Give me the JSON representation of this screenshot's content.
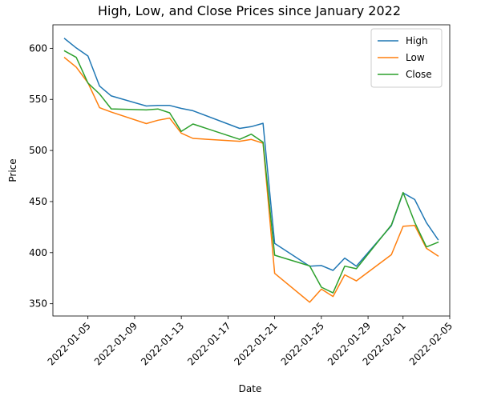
{
  "chart_data": {
    "type": "line",
    "title": "High, Low, and Close Prices since January 2022",
    "xlabel": "Date",
    "ylabel": "Price",
    "x_type": "date",
    "xlim": [
      "2022-01-02",
      "2022-02-05"
    ],
    "ylim": [
      338,
      623
    ],
    "xticks": [
      "2022-01-05",
      "2022-01-09",
      "2022-01-13",
      "2022-01-17",
      "2022-01-21",
      "2022-01-25",
      "2022-01-29",
      "2022-02-01",
      "2022-02-05"
    ],
    "yticks": [
      350,
      400,
      450,
      500,
      550,
      600
    ],
    "grid": false,
    "legend_position": "top-right",
    "dates": [
      "2022-01-03",
      "2022-01-04",
      "2022-01-05",
      "2022-01-06",
      "2022-01-07",
      "2022-01-10",
      "2022-01-11",
      "2022-01-12",
      "2022-01-13",
      "2022-01-14",
      "2022-01-18",
      "2022-01-19",
      "2022-01-20",
      "2022-01-21",
      "2022-01-24",
      "2022-01-25",
      "2022-01-26",
      "2022-01-27",
      "2022-01-28",
      "2022-01-31",
      "2022-02-01",
      "2022-02-02",
      "2022-02-03",
      "2022-02-04"
    ],
    "series": [
      {
        "name": "High",
        "color": "#1f77b4",
        "values": [
          609.5,
          600.4,
          592.5,
          563.0,
          553.4,
          543.5,
          544.1,
          544.1,
          541.2,
          538.9,
          521.6,
          523.3,
          526.6,
          409.0,
          386.7,
          387.4,
          382.6,
          394.7,
          386.8,
          426.4,
          458.5,
          452.0,
          429.4,
          412.8
        ]
      },
      {
        "name": "Low",
        "color": "#ff7f0e",
        "values": [
          590.8,
          581.6,
          566.2,
          541.9,
          537.6,
          526.3,
          529.6,
          531.7,
          517.0,
          511.8,
          509.0,
          510.8,
          507.1,
          379.7,
          351.5,
          364.3,
          357.1,
          378.3,
          372.4,
          398.0,
          425.8,
          426.6,
          404.2,
          396.7
        ]
      },
      {
        "name": "Close",
        "color": "#2ca02c",
        "values": [
          597.4,
          591.1,
          566.0,
          555.3,
          540.7,
          539.7,
          540.6,
          536.9,
          518.6,
          525.9,
          510.9,
          516.0,
          508.1,
          397.5,
          387.0,
          366.2,
          360.6,
          386.8,
          384.3,
          427.1,
          458.9,
          429.7,
          405.6,
          410.2
        ]
      }
    ]
  }
}
